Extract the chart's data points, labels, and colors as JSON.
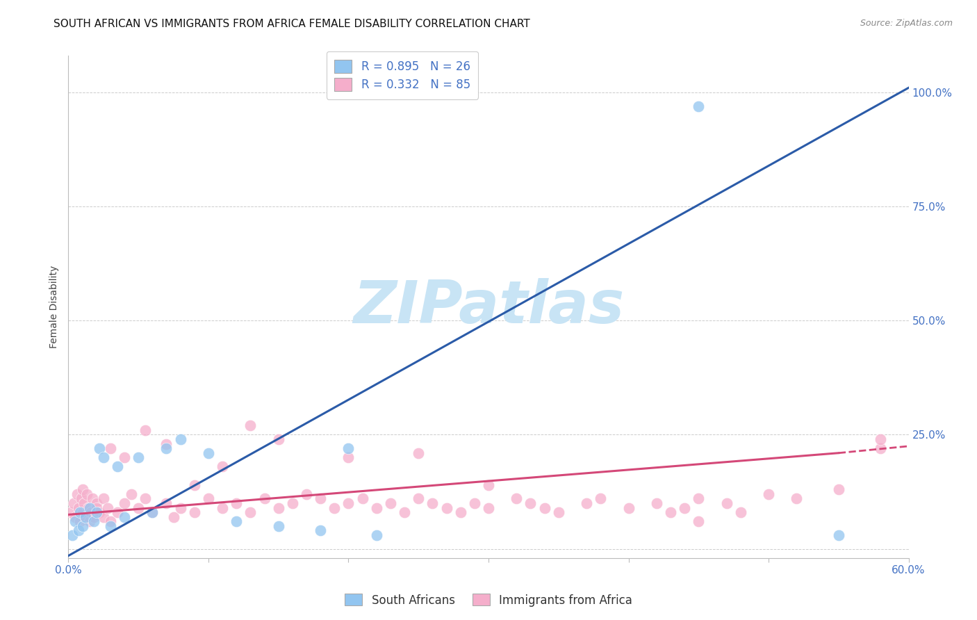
{
  "title": "SOUTH AFRICAN VS IMMIGRANTS FROM AFRICA FEMALE DISABILITY CORRELATION CHART",
  "source": "Source: ZipAtlas.com",
  "ylabel": "Female Disability",
  "xlim": [
    0.0,
    60.0
  ],
  "ylim": [
    -2.0,
    108.0
  ],
  "yticks": [
    0,
    25,
    50,
    75,
    100
  ],
  "xticks": [
    0,
    10,
    20,
    30,
    40,
    50,
    60
  ],
  "blue_label": "South Africans",
  "pink_label": "Immigrants from Africa",
  "blue_R": "R = 0.895",
  "blue_N": "N = 26",
  "pink_R": "R = 0.332",
  "pink_N": "N = 85",
  "blue_color": "#92C5F0",
  "blue_line_color": "#2B5BA8",
  "pink_color": "#F5AECB",
  "pink_line_color": "#D44878",
  "background_color": "#FFFFFF",
  "grid_color": "#CCCCCC",
  "watermark_text": "ZIPatlas",
  "watermark_color": "#C8E4F5",
  "right_axis_color": "#4472C4",
  "blue_scatter_x": [
    0.3,
    0.5,
    0.7,
    0.8,
    1.0,
    1.2,
    1.5,
    1.8,
    2.0,
    2.2,
    2.5,
    3.0,
    3.5,
    4.0,
    5.0,
    6.0,
    7.0,
    8.0,
    10.0,
    12.0,
    15.0,
    18.0,
    20.0,
    22.0,
    45.0,
    55.0
  ],
  "blue_scatter_y": [
    3.0,
    6.0,
    4.0,
    8.0,
    5.0,
    7.0,
    9.0,
    6.0,
    8.0,
    22.0,
    20.0,
    5.0,
    18.0,
    7.0,
    20.0,
    8.0,
    22.0,
    24.0,
    21.0,
    6.0,
    5.0,
    4.0,
    22.0,
    3.0,
    97.0,
    3.0
  ],
  "pink_scatter_x": [
    0.2,
    0.4,
    0.5,
    0.6,
    0.7,
    0.8,
    0.9,
    1.0,
    1.0,
    1.1,
    1.2,
    1.3,
    1.4,
    1.5,
    1.6,
    1.7,
    1.8,
    2.0,
    2.0,
    2.2,
    2.5,
    2.5,
    2.8,
    3.0,
    3.5,
    4.0,
    4.5,
    5.0,
    5.5,
    6.0,
    7.0,
    7.5,
    8.0,
    9.0,
    10.0,
    11.0,
    12.0,
    13.0,
    14.0,
    15.0,
    16.0,
    17.0,
    18.0,
    19.0,
    20.0,
    21.0,
    22.0,
    23.0,
    24.0,
    25.0,
    26.0,
    27.0,
    28.0,
    29.0,
    30.0,
    32.0,
    33.0,
    34.0,
    35.0,
    37.0,
    38.0,
    40.0,
    42.0,
    43.0,
    44.0,
    45.0,
    47.0,
    48.0,
    50.0,
    52.0,
    55.0,
    58.0,
    3.0,
    4.0,
    5.5,
    7.0,
    9.0,
    11.0,
    13.0,
    15.0,
    20.0,
    25.0,
    30.0,
    45.0,
    58.0
  ],
  "pink_scatter_y": [
    8.0,
    10.0,
    7.0,
    12.0,
    9.0,
    6.0,
    11.0,
    8.0,
    13.0,
    10.0,
    7.0,
    12.0,
    9.0,
    6.0,
    8.0,
    11.0,
    7.0,
    10.0,
    9.0,
    8.0,
    11.0,
    7.0,
    9.0,
    6.0,
    8.0,
    10.0,
    12.0,
    9.0,
    11.0,
    8.0,
    10.0,
    7.0,
    9.0,
    8.0,
    11.0,
    9.0,
    10.0,
    8.0,
    11.0,
    9.0,
    10.0,
    12.0,
    11.0,
    9.0,
    10.0,
    11.0,
    9.0,
    10.0,
    8.0,
    11.0,
    10.0,
    9.0,
    8.0,
    10.0,
    9.0,
    11.0,
    10.0,
    9.0,
    8.0,
    10.0,
    11.0,
    9.0,
    10.0,
    8.0,
    9.0,
    11.0,
    10.0,
    8.0,
    12.0,
    11.0,
    13.0,
    22.0,
    22.0,
    20.0,
    26.0,
    23.0,
    14.0,
    18.0,
    27.0,
    24.0,
    20.0,
    21.0,
    14.0,
    6.0,
    24.0
  ],
  "blue_reg_x0": 0.0,
  "blue_reg_y0": -1.5,
  "blue_reg_x1": 60.0,
  "blue_reg_y1": 101.0,
  "pink_solid_x0": 0.0,
  "pink_solid_y0": 7.5,
  "pink_solid_x1": 55.0,
  "pink_solid_y1": 21.0,
  "pink_dash_x0": 55.0,
  "pink_dash_y0": 21.0,
  "pink_dash_x1": 60.0,
  "pink_dash_y1": 22.5
}
